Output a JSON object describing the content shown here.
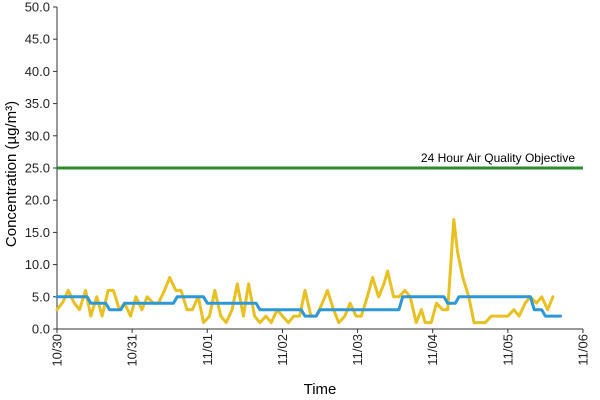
{
  "chart_data": {
    "type": "line",
    "xlabel": "Time",
    "ylabel": "Concentration (µg/m³)",
    "ylim": [
      0,
      50
    ],
    "yticks": [
      "0.0",
      "5.0",
      "10.0",
      "15.0",
      "20.0",
      "25.0",
      "30.0",
      "35.0",
      "40.0",
      "45.0",
      "50.0"
    ],
    "ytick_values": [
      0,
      5,
      10,
      15,
      20,
      25,
      30,
      35,
      40,
      45,
      50
    ],
    "xticks": [
      "10/30",
      "10/31",
      "11/01",
      "11/02",
      "11/03",
      "11/04",
      "11/05",
      "11/06"
    ],
    "grid": false,
    "legend": "none",
    "reference_line": {
      "label": "24 Hour Air Quality Objective",
      "value": 25,
      "color": "#2e8b2e"
    },
    "series": [
      {
        "color": "#e8c021",
        "points": [
          [
            0,
            3
          ],
          [
            0.08,
            4.2
          ],
          [
            0.15,
            6
          ],
          [
            0.23,
            4
          ],
          [
            0.3,
            3
          ],
          [
            0.38,
            6
          ],
          [
            0.45,
            2
          ],
          [
            0.53,
            5
          ],
          [
            0.6,
            2
          ],
          [
            0.68,
            6
          ],
          [
            0.75,
            6
          ],
          [
            0.83,
            3
          ],
          [
            0.9,
            4
          ],
          [
            0.98,
            2
          ],
          [
            1.05,
            5
          ],
          [
            1.13,
            3
          ],
          [
            1.2,
            5
          ],
          [
            1.28,
            4
          ],
          [
            1.35,
            4
          ],
          [
            1.43,
            6
          ],
          [
            1.5,
            8
          ],
          [
            1.58,
            6
          ],
          [
            1.65,
            6
          ],
          [
            1.73,
            3
          ],
          [
            1.8,
            3
          ],
          [
            1.88,
            5
          ],
          [
            1.95,
            1
          ],
          [
            2.03,
            2
          ],
          [
            2.1,
            6
          ],
          [
            2.18,
            2
          ],
          [
            2.25,
            1
          ],
          [
            2.33,
            3
          ],
          [
            2.4,
            7
          ],
          [
            2.48,
            2
          ],
          [
            2.55,
            7
          ],
          [
            2.63,
            2
          ],
          [
            2.7,
            1
          ],
          [
            2.78,
            2
          ],
          [
            2.85,
            1
          ],
          [
            2.93,
            3
          ],
          [
            3,
            2
          ],
          [
            3.08,
            1
          ],
          [
            3.15,
            2
          ],
          [
            3.23,
            2
          ],
          [
            3.3,
            6
          ],
          [
            3.38,
            2
          ],
          [
            3.45,
            2
          ],
          [
            3.53,
            4
          ],
          [
            3.6,
            6
          ],
          [
            3.68,
            3
          ],
          [
            3.75,
            1
          ],
          [
            3.83,
            2
          ],
          [
            3.9,
            4
          ],
          [
            3.98,
            2
          ],
          [
            4.05,
            2
          ],
          [
            4.13,
            5
          ],
          [
            4.2,
            8
          ],
          [
            4.28,
            5
          ],
          [
            4.35,
            7
          ],
          [
            4.4,
            9
          ],
          [
            4.48,
            5
          ],
          [
            4.55,
            5
          ],
          [
            4.63,
            6
          ],
          [
            4.7,
            5
          ],
          [
            4.78,
            1
          ],
          [
            4.85,
            3
          ],
          [
            4.9,
            1
          ],
          [
            4.98,
            1
          ],
          [
            5.05,
            4
          ],
          [
            5.13,
            3
          ],
          [
            5.2,
            3
          ],
          [
            5.28,
            17
          ],
          [
            5.33,
            12
          ],
          [
            5.4,
            8
          ],
          [
            5.48,
            5
          ],
          [
            5.55,
            1
          ],
          [
            5.63,
            1
          ],
          [
            5.7,
            1
          ],
          [
            5.78,
            2
          ],
          [
            5.85,
            2
          ],
          [
            5.93,
            2
          ],
          [
            6,
            2
          ],
          [
            6.08,
            3
          ],
          [
            6.15,
            2
          ],
          [
            6.23,
            4
          ],
          [
            6.3,
            5
          ],
          [
            6.38,
            4
          ],
          [
            6.45,
            5
          ],
          [
            6.53,
            3
          ],
          [
            6.6,
            5
          ]
        ]
      },
      {
        "color": "#2e97d8",
        "points": [
          [
            0,
            5
          ],
          [
            0.4,
            5
          ],
          [
            0.45,
            4
          ],
          [
            0.65,
            4
          ],
          [
            0.7,
            3
          ],
          [
            0.85,
            3
          ],
          [
            0.9,
            4
          ],
          [
            1.55,
            4
          ],
          [
            1.6,
            5
          ],
          [
            1.95,
            5
          ],
          [
            2,
            4
          ],
          [
            2.65,
            4
          ],
          [
            2.7,
            3
          ],
          [
            3.25,
            3
          ],
          [
            3.3,
            2
          ],
          [
            3.45,
            2
          ],
          [
            3.5,
            3
          ],
          [
            4.55,
            3
          ],
          [
            4.6,
            5
          ],
          [
            5.15,
            5
          ],
          [
            5.2,
            4
          ],
          [
            5.3,
            4
          ],
          [
            5.35,
            5
          ],
          [
            6.3,
            5
          ],
          [
            6.35,
            3
          ],
          [
            6.45,
            3
          ],
          [
            6.5,
            2
          ],
          [
            6.7,
            2
          ]
        ]
      }
    ]
  }
}
